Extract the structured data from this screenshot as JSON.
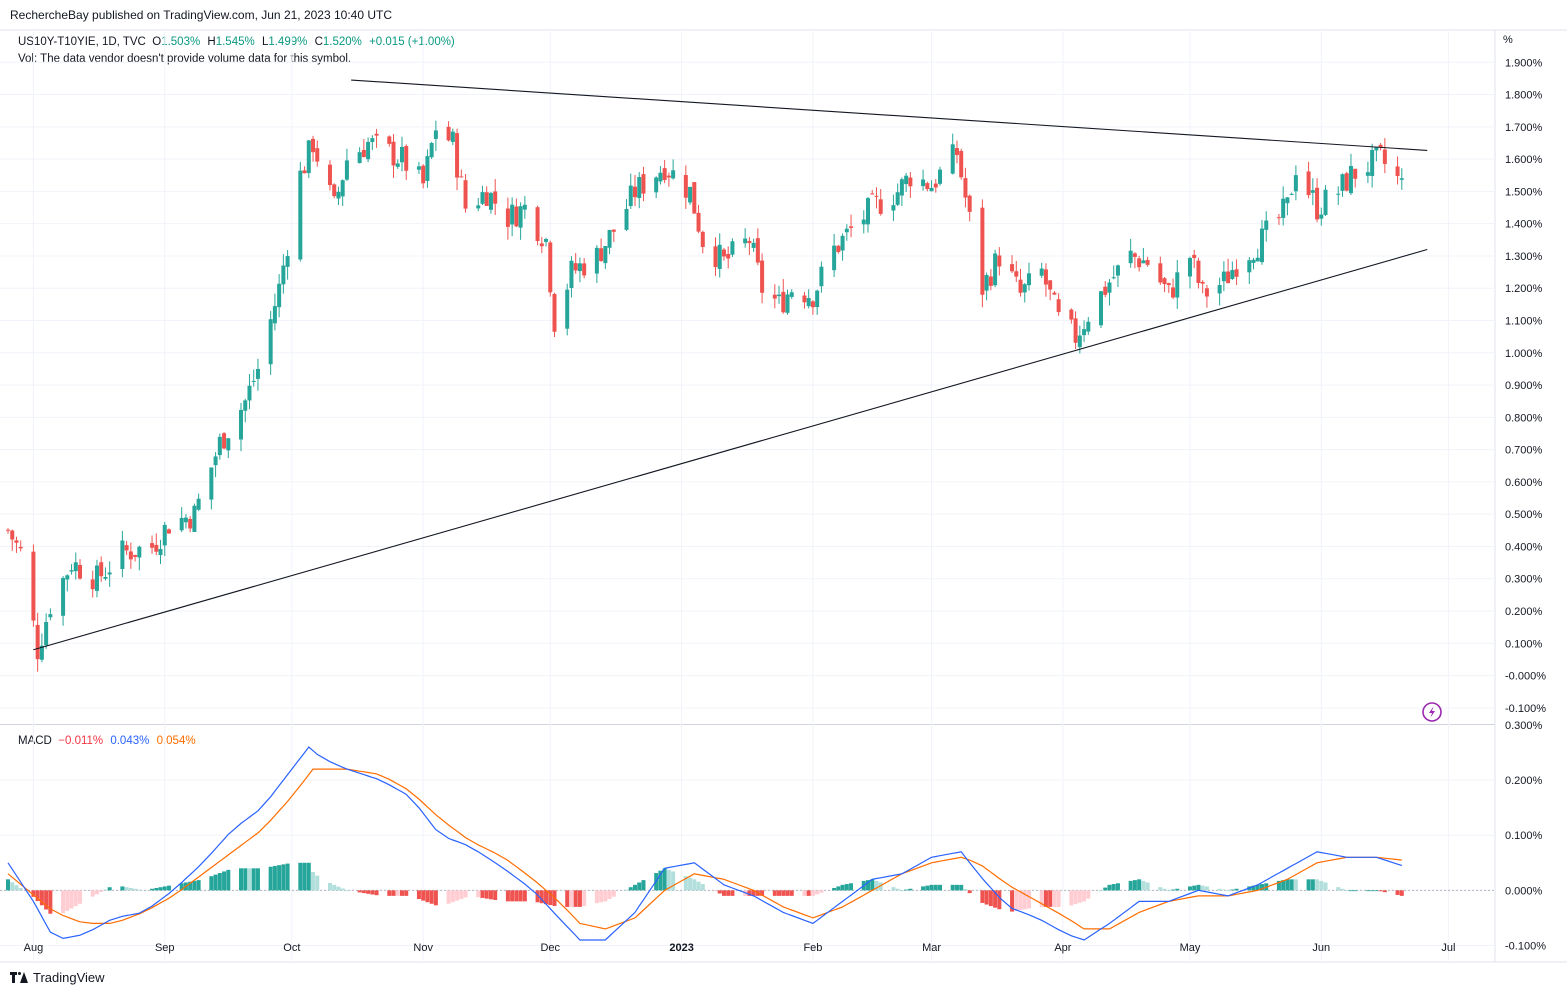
{
  "header": {
    "published": "RechercheBay published on TradingView.com, Jun 21, 2023 10:40 UTC"
  },
  "legend": {
    "symbol": "US10Y-T10YIE, 1D, TVC",
    "open_label": "O",
    "open": "1.503%",
    "high_label": "H",
    "high": "1.545%",
    "low_label": "L",
    "low": "1.499%",
    "close_label": "C",
    "close": "1.520%",
    "change": "+0.015 (+1.00%)",
    "volume_note": "Vol: The data vendor doesn't provide volume data for this symbol."
  },
  "macd_legend": {
    "name": "MACD",
    "hist": "−0.011%",
    "macd": "0.043%",
    "signal": "0.054%"
  },
  "brand": {
    "name": "TradingView"
  },
  "colors": {
    "up": "#26a69a",
    "down": "#ef5350",
    "macd": "#2962ff",
    "signal": "#ff6d00",
    "hist_up_strong": "#26a69a",
    "hist_up_weak": "#b2dfdb",
    "hist_down_strong": "#ef5350",
    "hist_down_weak": "#ffcdd2",
    "trendline": "#131722"
  },
  "icons": {
    "alert": "lightning-alert-icon"
  },
  "chart_data": [
    {
      "type": "candlestick",
      "title": "",
      "y_unit": "%",
      "ylim": [
        -0.15,
        2.0
      ],
      "x_range": [
        "2022-07-26",
        "2023-07-12"
      ],
      "x_ticks": [
        "Aug",
        "Sep",
        "Oct",
        "Nov",
        "Dec",
        "2023",
        "Feb",
        "Mar",
        "Apr",
        "May",
        "Jun",
        "Jul"
      ],
      "x_tick_dates": [
        "2022-08-01",
        "2022-09-01",
        "2022-10-01",
        "2022-11-01",
        "2022-12-01",
        "2023-01-01",
        "2023-02-01",
        "2023-03-01",
        "2023-04-01",
        "2023-05-01",
        "2023-06-01",
        "2023-07-01"
      ],
      "y_ticks": [
        "1.900%",
        "1.800%",
        "1.700%",
        "1.600%",
        "1.500%",
        "1.400%",
        "1.300%",
        "1.200%",
        "1.100%",
        "1.000%",
        "0.900%",
        "0.800%",
        "0.700%",
        "0.600%",
        "0.500%",
        "0.400%",
        "0.300%",
        "0.200%",
        "0.100%",
        "-0.000%",
        "-0.100%"
      ],
      "y_tick_values": [
        1.9,
        1.8,
        1.7,
        1.6,
        1.5,
        1.4,
        1.3,
        1.2,
        1.1,
        1.0,
        0.9,
        0.8,
        0.7,
        0.6,
        0.5,
        0.4,
        0.3,
        0.2,
        0.1,
        0.0,
        -0.1
      ],
      "grid": true,
      "close_path": [
        [
          "2022-07-26",
          0.45
        ],
        [
          "2022-07-29",
          0.38
        ],
        [
          "2022-08-02",
          0.08
        ],
        [
          "2022-08-05",
          0.22
        ],
        [
          "2022-08-10",
          0.35
        ],
        [
          "2022-08-16",
          0.3
        ],
        [
          "2022-08-22",
          0.38
        ],
        [
          "2022-08-29",
          0.4
        ],
        [
          "2022-09-02",
          0.47
        ],
        [
          "2022-09-08",
          0.5
        ],
        [
          "2022-09-14",
          0.72
        ],
        [
          "2022-09-20",
          0.85
        ],
        [
          "2022-09-23",
          0.95
        ],
        [
          "2022-09-28",
          1.2
        ],
        [
          "2022-10-03",
          1.55
        ],
        [
          "2022-10-06",
          1.65
        ],
        [
          "2022-10-11",
          1.45
        ],
        [
          "2022-10-14",
          1.6
        ],
        [
          "2022-10-19",
          1.65
        ],
        [
          "2022-10-24",
          1.62
        ],
        [
          "2022-10-27",
          1.6
        ],
        [
          "2022-11-01",
          1.52
        ],
        [
          "2022-11-04",
          1.7
        ],
        [
          "2022-11-08",
          1.65
        ],
        [
          "2022-11-11",
          1.45
        ],
        [
          "2022-11-16",
          1.5
        ],
        [
          "2022-11-21",
          1.42
        ],
        [
          "2022-11-25",
          1.45
        ],
        [
          "2022-11-30",
          1.35
        ],
        [
          "2022-12-02",
          1.1
        ],
        [
          "2022-12-06",
          1.25
        ],
        [
          "2022-12-12",
          1.3
        ],
        [
          "2022-12-16",
          1.38
        ],
        [
          "2022-12-21",
          1.5
        ],
        [
          "2022-12-28",
          1.58
        ],
        [
          "2023-01-03",
          1.5
        ],
        [
          "2023-01-06",
          1.35
        ],
        [
          "2023-01-11",
          1.28
        ],
        [
          "2023-01-17",
          1.35
        ],
        [
          "2023-01-20",
          1.2
        ],
        [
          "2023-01-24",
          1.15
        ],
        [
          "2023-01-27",
          1.2
        ],
        [
          "2023-02-01",
          1.18
        ],
        [
          "2023-02-06",
          1.32
        ],
        [
          "2023-02-10",
          1.38
        ],
        [
          "2023-02-15",
          1.45
        ],
        [
          "2023-02-21",
          1.5
        ],
        [
          "2023-02-24",
          1.55
        ],
        [
          "2023-03-01",
          1.52
        ],
        [
          "2023-03-07",
          1.62
        ],
        [
          "2023-03-09",
          1.48
        ],
        [
          "2023-03-13",
          1.2
        ],
        [
          "2023-03-17",
          1.3
        ],
        [
          "2023-03-22",
          1.18
        ],
        [
          "2023-03-27",
          1.25
        ],
        [
          "2023-03-31",
          1.1
        ],
        [
          "2023-04-04",
          1.05
        ],
        [
          "2023-04-07",
          1.12
        ],
        [
          "2023-04-12",
          1.22
        ],
        [
          "2023-04-17",
          1.3
        ],
        [
          "2023-04-21",
          1.28
        ],
        [
          "2023-04-26",
          1.18
        ],
        [
          "2023-05-01",
          1.3
        ],
        [
          "2023-05-04",
          1.18
        ],
        [
          "2023-05-09",
          1.22
        ],
        [
          "2023-05-12",
          1.28
        ],
        [
          "2023-05-18",
          1.35
        ],
        [
          "2023-05-24",
          1.45
        ],
        [
          "2023-05-26",
          1.58
        ],
        [
          "2023-05-31",
          1.45
        ],
        [
          "2023-06-05",
          1.5
        ],
        [
          "2023-06-08",
          1.55
        ],
        [
          "2023-06-12",
          1.58
        ],
        [
          "2023-06-15",
          1.6
        ],
        [
          "2023-06-20",
          1.52
        ]
      ],
      "trendlines": [
        {
          "name": "resistance",
          "from": [
            "2022-10-15",
            1.845
          ],
          "to": [
            "2023-06-26",
            1.627
          ]
        },
        {
          "name": "support",
          "from": [
            "2022-08-01",
            0.08
          ],
          "to": [
            "2023-06-26",
            1.32
          ]
        }
      ]
    },
    {
      "type": "line",
      "title": "MACD",
      "ylim": [
        -0.13,
        0.3
      ],
      "y_ticks": [
        "0.300%",
        "0.200%",
        "0.100%",
        "0.000%",
        "-0.100%"
      ],
      "y_tick_values": [
        0.3,
        0.2,
        0.1,
        0.0,
        -0.1
      ],
      "series": [
        {
          "name": "MACD",
          "points": [
            [
              "2022-07-26",
              0.05
            ],
            [
              "2022-08-01",
              -0.02
            ],
            [
              "2022-08-06",
              -0.09
            ],
            [
              "2022-08-13",
              -0.08
            ],
            [
              "2022-08-20",
              -0.05
            ],
            [
              "2022-08-27",
              -0.04
            ],
            [
              "2022-09-03",
              0.0
            ],
            [
              "2022-09-10",
              0.05
            ],
            [
              "2022-09-17",
              0.11
            ],
            [
              "2022-09-24",
              0.15
            ],
            [
              "2022-10-01",
              0.22
            ],
            [
              "2022-10-05",
              0.26
            ],
            [
              "2022-10-08",
              0.24
            ],
            [
              "2022-10-14",
              0.22
            ],
            [
              "2022-10-22",
              0.2
            ],
            [
              "2022-10-29",
              0.17
            ],
            [
              "2022-11-05",
              0.1
            ],
            [
              "2022-11-12",
              0.08
            ],
            [
              "2022-11-20",
              0.04
            ],
            [
              "2022-11-27",
              0.0
            ],
            [
              "2022-12-03",
              -0.05
            ],
            [
              "2022-12-08",
              -0.09
            ],
            [
              "2022-12-14",
              -0.09
            ],
            [
              "2022-12-21",
              -0.04
            ],
            [
              "2022-12-28",
              0.04
            ],
            [
              "2023-01-04",
              0.05
            ],
            [
              "2023-01-11",
              0.01
            ],
            [
              "2023-01-18",
              -0.01
            ],
            [
              "2023-01-25",
              -0.04
            ],
            [
              "2023-02-01",
              -0.06
            ],
            [
              "2023-02-08",
              -0.02
            ],
            [
              "2023-02-15",
              0.02
            ],
            [
              "2023-02-22",
              0.03
            ],
            [
              "2023-03-01",
              0.06
            ],
            [
              "2023-03-08",
              0.07
            ],
            [
              "2023-03-12",
              0.03
            ],
            [
              "2023-03-19",
              -0.03
            ],
            [
              "2023-03-26",
              -0.05
            ],
            [
              "2023-04-02",
              -0.08
            ],
            [
              "2023-04-06",
              -0.09
            ],
            [
              "2023-04-12",
              -0.06
            ],
            [
              "2023-04-19",
              -0.02
            ],
            [
              "2023-04-26",
              -0.02
            ],
            [
              "2023-05-03",
              0.0
            ],
            [
              "2023-05-10",
              -0.01
            ],
            [
              "2023-05-17",
              0.01
            ],
            [
              "2023-05-24",
              0.04
            ],
            [
              "2023-05-31",
              0.07
            ],
            [
              "2023-06-07",
              0.06
            ],
            [
              "2023-06-14",
              0.06
            ],
            [
              "2023-06-20",
              0.045
            ]
          ]
        },
        {
          "name": "Signal",
          "points": [
            [
              "2022-07-26",
              0.03
            ],
            [
              "2022-08-06",
              -0.04
            ],
            [
              "2022-08-13",
              -0.06
            ],
            [
              "2022-08-20",
              -0.06
            ],
            [
              "2022-08-27",
              -0.04
            ],
            [
              "2022-09-03",
              -0.01
            ],
            [
              "2022-09-10",
              0.03
            ],
            [
              "2022-09-17",
              0.07
            ],
            [
              "2022-09-24",
              0.11
            ],
            [
              "2022-10-01",
              0.17
            ],
            [
              "2022-10-06",
              0.22
            ],
            [
              "2022-10-14",
              0.22
            ],
            [
              "2022-10-22",
              0.21
            ],
            [
              "2022-10-29",
              0.18
            ],
            [
              "2022-11-05",
              0.13
            ],
            [
              "2022-11-12",
              0.09
            ],
            [
              "2022-11-20",
              0.06
            ],
            [
              "2022-11-27",
              0.02
            ],
            [
              "2022-12-03",
              -0.02
            ],
            [
              "2022-12-08",
              -0.06
            ],
            [
              "2022-12-14",
              -0.07
            ],
            [
              "2022-12-21",
              -0.05
            ],
            [
              "2022-12-28",
              0.0
            ],
            [
              "2023-01-04",
              0.03
            ],
            [
              "2023-01-11",
              0.02
            ],
            [
              "2023-01-18",
              0.0
            ],
            [
              "2023-01-25",
              -0.03
            ],
            [
              "2023-02-01",
              -0.05
            ],
            [
              "2023-02-08",
              -0.03
            ],
            [
              "2023-02-15",
              0.0
            ],
            [
              "2023-02-22",
              0.03
            ],
            [
              "2023-03-01",
              0.05
            ],
            [
              "2023-03-08",
              0.06
            ],
            [
              "2023-03-12",
              0.05
            ],
            [
              "2023-03-19",
              0.01
            ],
            [
              "2023-03-26",
              -0.02
            ],
            [
              "2023-04-02",
              -0.05
            ],
            [
              "2023-04-06",
              -0.07
            ],
            [
              "2023-04-12",
              -0.07
            ],
            [
              "2023-04-19",
              -0.04
            ],
            [
              "2023-04-26",
              -0.02
            ],
            [
              "2023-05-03",
              -0.01
            ],
            [
              "2023-05-10",
              -0.01
            ],
            [
              "2023-05-17",
              0.0
            ],
            [
              "2023-05-24",
              0.02
            ],
            [
              "2023-05-31",
              0.05
            ],
            [
              "2023-06-07",
              0.06
            ],
            [
              "2023-06-14",
              0.06
            ],
            [
              "2023-06-20",
              0.055
            ]
          ]
        }
      ]
    }
  ]
}
